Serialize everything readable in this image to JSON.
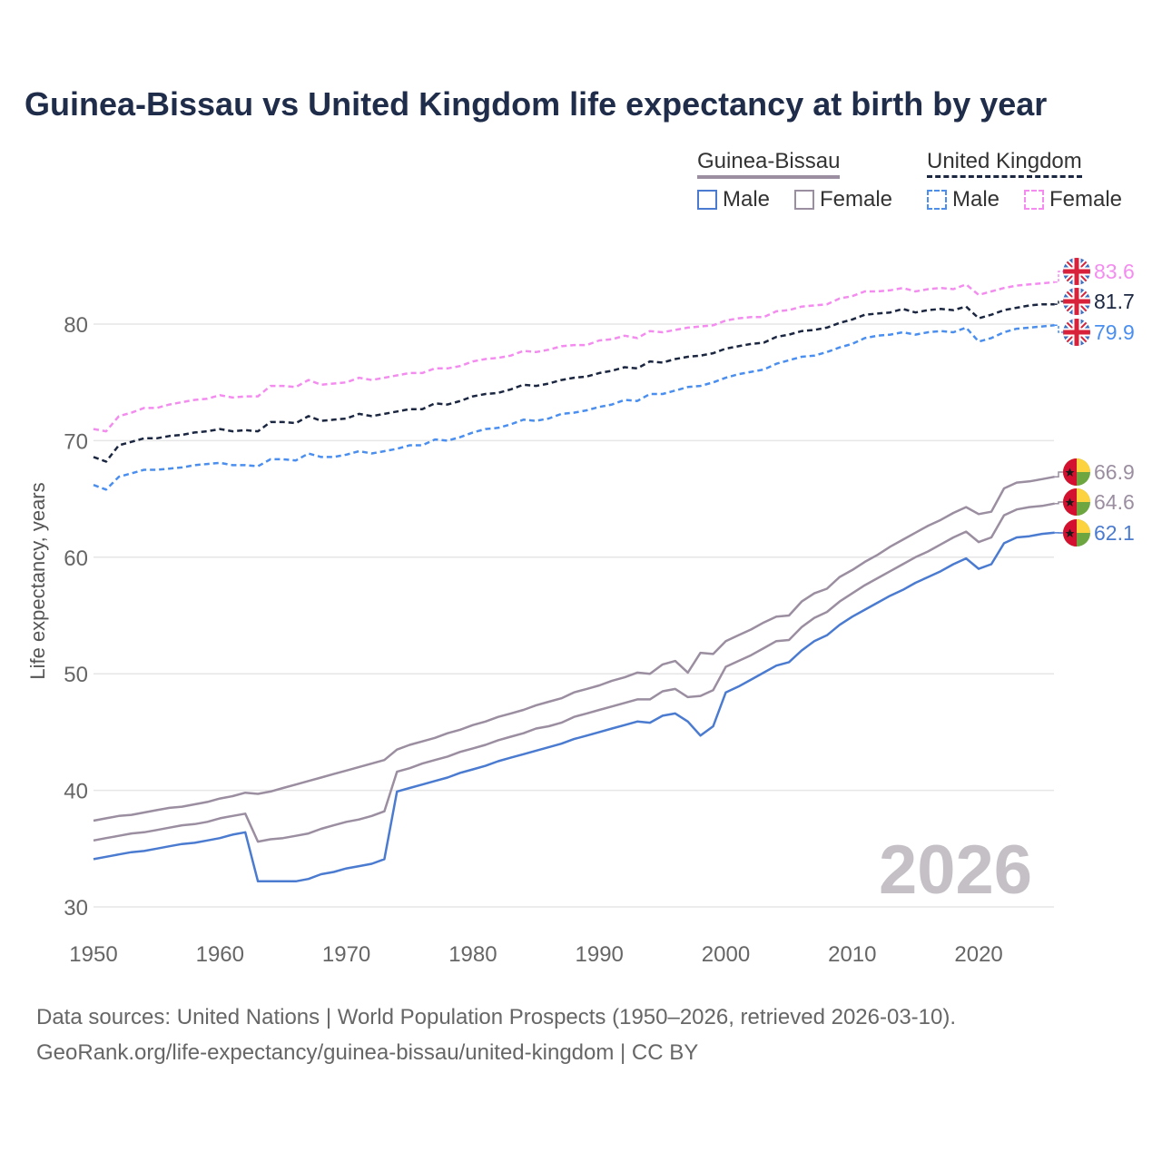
{
  "title": "Guinea-Bissau vs United Kingdom life expectancy at birth by year",
  "legend": {
    "groups": [
      {
        "name": "Guinea-Bissau",
        "items": [
          "Male",
          "Female"
        ]
      },
      {
        "name": "United Kingdom",
        "items": [
          "Male",
          "Female"
        ]
      }
    ]
  },
  "year_watermark": "2026",
  "footer": {
    "line1": "Data sources: United Nations | World Population Prospects (1950–2026, retrieved 2026-03-10).",
    "line2": "GeoRank.org/life-expectancy/guinea-bissau/united-kingdom | CC BY"
  },
  "chart_data": {
    "type": "line",
    "title": "Guinea-Bissau vs United Kingdom life expectancy at birth by year",
    "xlabel": "",
    "ylabel": "Life expectancy, years",
    "xlim": [
      1950,
      2026
    ],
    "ylim": [
      30,
      86
    ],
    "x_start": 1950,
    "x_ticks": [
      1950,
      1960,
      1970,
      1980,
      1990,
      2000,
      2010,
      2020
    ],
    "y_ticks": [
      30,
      40,
      50,
      60,
      70,
      80
    ],
    "grid": true,
    "series": [
      {
        "name": "United Kingdom Female",
        "country": "uk",
        "color": "#f48cf0",
        "dash": true,
        "end_label": "83.6",
        "values": [
          71.0,
          70.8,
          72.1,
          72.4,
          72.8,
          72.8,
          73.1,
          73.3,
          73.5,
          73.6,
          73.9,
          73.7,
          73.8,
          73.8,
          74.7,
          74.7,
          74.6,
          75.2,
          74.8,
          74.9,
          75.0,
          75.4,
          75.2,
          75.4,
          75.6,
          75.8,
          75.8,
          76.2,
          76.2,
          76.4,
          76.8,
          77.0,
          77.1,
          77.3,
          77.7,
          77.6,
          77.8,
          78.1,
          78.2,
          78.2,
          78.6,
          78.7,
          79.0,
          78.8,
          79.4,
          79.3,
          79.5,
          79.7,
          79.8,
          79.9,
          80.3,
          80.5,
          80.6,
          80.6,
          81.1,
          81.2,
          81.5,
          81.6,
          81.7,
          82.2,
          82.4,
          82.8,
          82.8,
          82.9,
          83.1,
          82.8,
          83.0,
          83.1,
          83.0,
          83.4,
          82.5,
          82.8,
          83.1,
          83.3,
          83.4,
          83.5,
          83.6
        ]
      },
      {
        "name": "United Kingdom Total",
        "country": "uk",
        "color": "#1b2640",
        "dash": true,
        "end_label": "81.7",
        "values": [
          68.6,
          68.2,
          69.6,
          69.9,
          70.2,
          70.2,
          70.4,
          70.5,
          70.7,
          70.8,
          71.0,
          70.8,
          70.9,
          70.8,
          71.6,
          71.6,
          71.5,
          72.1,
          71.7,
          71.8,
          71.9,
          72.3,
          72.1,
          72.3,
          72.5,
          72.7,
          72.7,
          73.2,
          73.1,
          73.4,
          73.8,
          74.0,
          74.1,
          74.4,
          74.8,
          74.7,
          74.9,
          75.2,
          75.4,
          75.5,
          75.8,
          76.0,
          76.3,
          76.2,
          76.8,
          76.7,
          77.0,
          77.2,
          77.3,
          77.5,
          77.9,
          78.1,
          78.3,
          78.4,
          78.9,
          79.1,
          79.4,
          79.5,
          79.7,
          80.1,
          80.4,
          80.8,
          80.9,
          81.0,
          81.3,
          81.0,
          81.2,
          81.3,
          81.2,
          81.5,
          80.5,
          80.8,
          81.2,
          81.4,
          81.6,
          81.7,
          81.7
        ]
      },
      {
        "name": "United Kingdom Male",
        "country": "uk",
        "color": "#4a8ff0",
        "dash": true,
        "end_label": "79.9",
        "values": [
          66.2,
          65.8,
          66.9,
          67.2,
          67.5,
          67.5,
          67.6,
          67.7,
          67.9,
          68.0,
          68.1,
          67.9,
          67.9,
          67.8,
          68.4,
          68.4,
          68.3,
          68.9,
          68.6,
          68.6,
          68.8,
          69.1,
          68.9,
          69.1,
          69.3,
          69.6,
          69.6,
          70.1,
          70.0,
          70.3,
          70.7,
          71.0,
          71.1,
          71.4,
          71.8,
          71.7,
          71.9,
          72.3,
          72.4,
          72.6,
          72.9,
          73.1,
          73.5,
          73.4,
          74.0,
          74.0,
          74.3,
          74.6,
          74.7,
          75.0,
          75.4,
          75.7,
          75.9,
          76.1,
          76.6,
          76.9,
          77.2,
          77.3,
          77.6,
          78.0,
          78.3,
          78.8,
          79.0,
          79.1,
          79.3,
          79.1,
          79.3,
          79.4,
          79.3,
          79.7,
          78.5,
          78.8,
          79.3,
          79.6,
          79.7,
          79.8,
          79.9
        ]
      },
      {
        "name": "Guinea-Bissau Female",
        "country": "gw",
        "color": "#9a8ea0",
        "dash": false,
        "end_label": "66.9",
        "values": [
          37.4,
          37.6,
          37.8,
          37.9,
          38.1,
          38.3,
          38.5,
          38.6,
          38.8,
          39.0,
          39.3,
          39.5,
          39.8,
          39.7,
          39.9,
          40.2,
          40.5,
          40.8,
          41.1,
          41.4,
          41.7,
          42.0,
          42.3,
          42.6,
          43.5,
          43.9,
          44.2,
          44.5,
          44.9,
          45.2,
          45.6,
          45.9,
          46.3,
          46.6,
          46.9,
          47.3,
          47.6,
          47.9,
          48.4,
          48.7,
          49.0,
          49.4,
          49.7,
          50.1,
          50.0,
          50.8,
          51.1,
          50.1,
          51.8,
          51.7,
          52.8,
          53.3,
          53.8,
          54.4,
          54.9,
          55.0,
          56.2,
          56.9,
          57.3,
          58.3,
          58.9,
          59.6,
          60.2,
          60.9,
          61.5,
          62.1,
          62.7,
          63.2,
          63.8,
          64.3,
          63.7,
          63.9,
          65.9,
          66.4,
          66.5,
          66.7,
          66.9
        ]
      },
      {
        "name": "Guinea-Bissau Total",
        "country": "gw",
        "color": "#9a8ea0",
        "dash": false,
        "end_label": "64.6",
        "values": [
          35.7,
          35.9,
          36.1,
          36.3,
          36.4,
          36.6,
          36.8,
          37.0,
          37.1,
          37.3,
          37.6,
          37.8,
          38.0,
          35.6,
          35.8,
          35.9,
          36.1,
          36.3,
          36.7,
          37.0,
          37.3,
          37.5,
          37.8,
          38.2,
          41.6,
          41.9,
          42.3,
          42.6,
          42.9,
          43.3,
          43.6,
          43.9,
          44.3,
          44.6,
          44.9,
          45.3,
          45.5,
          45.8,
          46.3,
          46.6,
          46.9,
          47.2,
          47.5,
          47.8,
          47.8,
          48.5,
          48.7,
          48.0,
          48.1,
          48.6,
          50.6,
          51.1,
          51.6,
          52.2,
          52.8,
          52.9,
          54.0,
          54.8,
          55.3,
          56.2,
          56.9,
          57.6,
          58.2,
          58.8,
          59.4,
          60.0,
          60.5,
          61.1,
          61.7,
          62.2,
          61.3,
          61.7,
          63.6,
          64.1,
          64.3,
          64.4,
          64.6
        ]
      },
      {
        "name": "Guinea-Bissau Male",
        "country": "gw",
        "color": "#4a7bd0",
        "dash": false,
        "end_label": "62.1",
        "values": [
          34.1,
          34.3,
          34.5,
          34.7,
          34.8,
          35.0,
          35.2,
          35.4,
          35.5,
          35.7,
          35.9,
          36.2,
          36.4,
          32.2,
          32.2,
          32.2,
          32.2,
          32.4,
          32.8,
          33.0,
          33.3,
          33.5,
          33.7,
          34.1,
          39.9,
          40.2,
          40.5,
          40.8,
          41.1,
          41.5,
          41.8,
          42.1,
          42.5,
          42.8,
          43.1,
          43.4,
          43.7,
          44.0,
          44.4,
          44.7,
          45.0,
          45.3,
          45.6,
          45.9,
          45.8,
          46.4,
          46.6,
          45.9,
          44.7,
          45.5,
          48.4,
          48.9,
          49.5,
          50.1,
          50.7,
          51.0,
          52.0,
          52.8,
          53.3,
          54.2,
          54.9,
          55.5,
          56.1,
          56.7,
          57.2,
          57.8,
          58.3,
          58.8,
          59.4,
          59.9,
          59.0,
          59.4,
          61.2,
          61.7,
          61.8,
          62.0,
          62.1
        ]
      }
    ]
  }
}
